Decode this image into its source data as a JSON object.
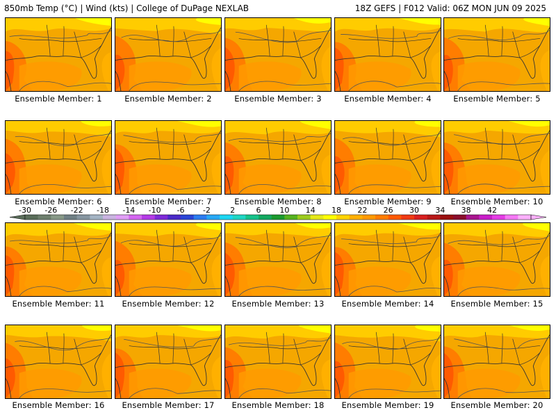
{
  "header": {
    "left_title": "850mb Temp (°C) | Wind (kts) | College of DuPage NEXLAB",
    "right_title": "18Z GEFS | F012 Valid: 06Z MON JUN 09 2025"
  },
  "colors": {
    "background": "#ffffff",
    "map_base": "#f5a700"
  },
  "members": [
    "Ensemble Member: 1",
    "Ensemble Member: 2",
    "Ensemble Member: 3",
    "Ensemble Member: 4",
    "Ensemble Member: 5",
    "Ensemble Member: 6",
    "Ensemble Member: 7",
    "Ensemble Member: 8",
    "Ensemble Member: 9",
    "Ensemble Member: 10",
    "Ensemble Member: 11",
    "Ensemble Member: 12",
    "Ensemble Member: 13",
    "Ensemble Member: 14",
    "Ensemble Member: 15",
    "Ensemble Member: 16",
    "Ensemble Member: 17",
    "Ensemble Member: 18",
    "Ensemble Member: 19",
    "Ensemble Member: 20"
  ],
  "colorbar": {
    "labels": [
      "-30",
      "-26",
      "-22",
      "-18",
      "-14",
      "-10",
      "-6",
      "-2",
      "2",
      "6",
      "10",
      "14",
      "18",
      "22",
      "26",
      "30",
      "34",
      "38",
      "42"
    ],
    "colors": [
      "#5a6d5a",
      "#6e7f6e",
      "#879887",
      "#6f7f84",
      "#8695a0",
      "#a3b3c3",
      "#c9b3e0",
      "#e09ef5",
      "#d466f0",
      "#b43be6",
      "#7e2ad8",
      "#4a2ac8",
      "#2a44d6",
      "#2b7cf0",
      "#27a8f5",
      "#1cd6f2",
      "#1fd6c4",
      "#15c28a",
      "#12a860",
      "#1b9a2e",
      "#55b21f",
      "#9ccb1d",
      "#e5e81a",
      "#ffff00",
      "#ffd400",
      "#ffb000",
      "#ff9a00",
      "#ff7d00",
      "#ff5a00",
      "#f03a14",
      "#d82020",
      "#b81818",
      "#9a1010",
      "#8a0e2c",
      "#a8158e",
      "#c81ec8",
      "#e43ce4",
      "#f578f5",
      "#fcb0fc"
    ]
  }
}
